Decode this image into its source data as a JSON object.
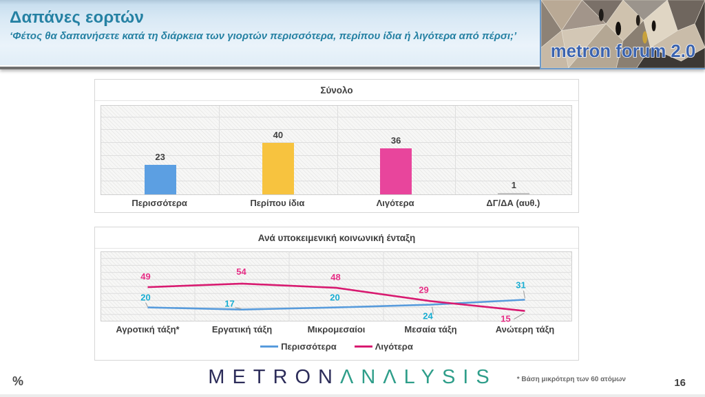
{
  "header": {
    "title": "Δαπάνες εορτών",
    "subtitle": "‘Φέτος θα δαπανήσετε κατά τη διάρκεια των γιορτών περισσότερα, περίπου ίδια ή λιγότερα από πέρσι;’",
    "logo_text": "metron forum 2.0"
  },
  "chart_data": [
    {
      "type": "bar",
      "title": "Σύνολο",
      "categories": [
        "Περισσότερα",
        "Περίπου ίδια",
        "Λιγότερα",
        "ΔΓ/ΔΑ (αυθ.)"
      ],
      "values": [
        23,
        40,
        36,
        1
      ],
      "bar_colors": [
        "#5C9FE2",
        "#F7C33F",
        "#E8459C",
        "#BFBFBF"
      ],
      "ylim": [
        0,
        70
      ],
      "gridline_step": 10,
      "grid": true,
      "data_labels": true,
      "label_color": "#3f3f3f"
    },
    {
      "type": "line",
      "title": "Ανά υποκειμενική κοινωνική ένταξη",
      "categories": [
        "Αγροτική τάξη*",
        "Εργατική τάξη",
        "Μικρομεσαίοι",
        "Μεσαία τάξη",
        "Ανώτερη τάξη"
      ],
      "series": [
        {
          "name": "Περισσότερα",
          "values": [
            20,
            17,
            20,
            24,
            31
          ],
          "line_color": "#579BDC",
          "label_color": "#17ADD2"
        },
        {
          "name": "Λιγότερα",
          "values": [
            49,
            54,
            48,
            29,
            15
          ],
          "line_color": "#D81A70",
          "label_color": "#E62E86"
        }
      ],
      "ylim": [
        0,
        100
      ],
      "gridline_step": 10,
      "grid": true,
      "data_labels": true,
      "legend_position": "bottom"
    }
  ],
  "footer": {
    "percent_symbol": "%",
    "brand_metron": "METRON",
    "brand_analysis": "ΛΝΛLYSIS",
    "footnote": "*  Βάση μικρότερη των 60 ατόμων",
    "page_number": "16"
  },
  "colors": {
    "header_title": "#2581A3",
    "grid_line": "#dedede",
    "axis_text": "#3f3f3f",
    "forum_text": "#3B63AE",
    "brand_metron": "#2d2d5a",
    "brand_analysis": "#2f9e8a"
  }
}
